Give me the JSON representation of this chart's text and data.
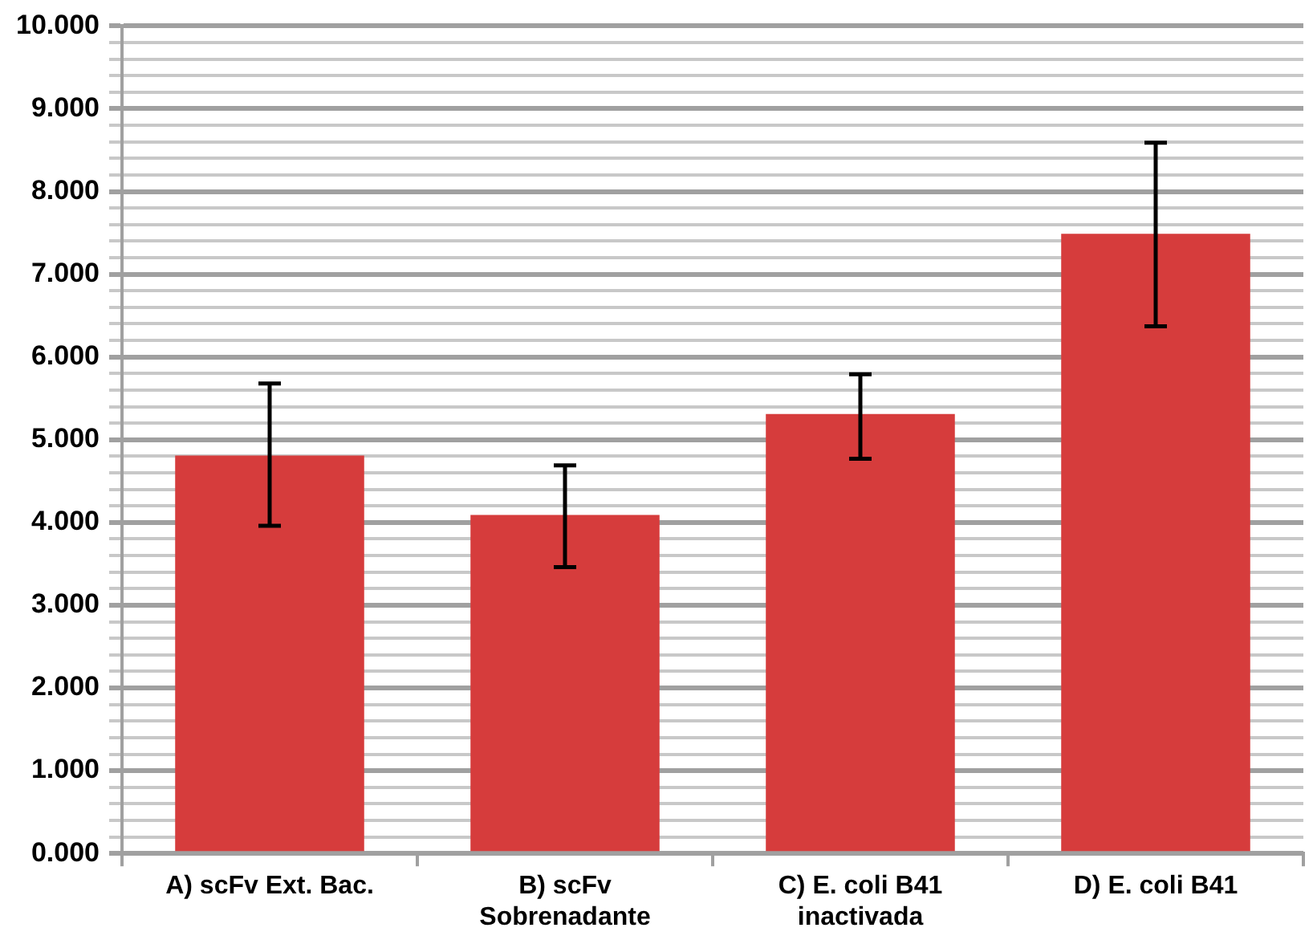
{
  "chart_data": {
    "type": "bar",
    "categories": [
      "A) scFv Ext. Bac.",
      "B) scFv Sobrenadante",
      "C) E. coli B41 inactivada",
      "D) E. coli B41"
    ],
    "values": [
      4.81,
      4.09,
      5.31,
      7.49
    ],
    "errors": [
      [
        3.96,
        5.68
      ],
      [
        3.46,
        4.69
      ],
      [
        4.77,
        5.79
      ],
      [
        6.37,
        8.59
      ]
    ],
    "color": "#d63c3c",
    "ylim": [
      0,
      10
    ],
    "yticks": [
      {
        "value": 0,
        "label": "0.000"
      },
      {
        "value": 0.2,
        "label": null
      },
      {
        "value": 0.4,
        "label": null
      },
      {
        "value": 0.6,
        "label": null
      },
      {
        "value": 0.8,
        "label": null
      },
      {
        "value": 1,
        "label": "1.000"
      },
      {
        "value": 1.2,
        "label": null
      },
      {
        "value": 1.4,
        "label": null
      },
      {
        "value": 1.6,
        "label": null
      },
      {
        "value": 1.8,
        "label": null
      },
      {
        "value": 2,
        "label": "2.000"
      },
      {
        "value": 2.2,
        "label": null
      },
      {
        "value": 2.4,
        "label": null
      },
      {
        "value": 2.6,
        "label": null
      },
      {
        "value": 2.8,
        "label": null
      },
      {
        "value": 3,
        "label": "3.000"
      },
      {
        "value": 3.2,
        "label": null
      },
      {
        "value": 3.4,
        "label": null
      },
      {
        "value": 3.6,
        "label": null
      },
      {
        "value": 3.8,
        "label": null
      },
      {
        "value": 4,
        "label": "4.000"
      },
      {
        "value": 4.2,
        "label": null
      },
      {
        "value": 4.4,
        "label": null
      },
      {
        "value": 4.6,
        "label": null
      },
      {
        "value": 4.8,
        "label": null
      },
      {
        "value": 5,
        "label": "5.000"
      },
      {
        "value": 5.2,
        "label": null
      },
      {
        "value": 5.4,
        "label": null
      },
      {
        "value": 5.6,
        "label": null
      },
      {
        "value": 5.8,
        "label": null
      },
      {
        "value": 6,
        "label": "6.000"
      },
      {
        "value": 6.2,
        "label": null
      },
      {
        "value": 6.4,
        "label": null
      },
      {
        "value": 6.6,
        "label": null
      },
      {
        "value": 6.8,
        "label": null
      },
      {
        "value": 7,
        "label": "7.000"
      },
      {
        "value": 7.2,
        "label": null
      },
      {
        "value": 7.4,
        "label": null
      },
      {
        "value": 7.6,
        "label": null
      },
      {
        "value": 7.8,
        "label": null
      },
      {
        "value": 8,
        "label": "8.000"
      },
      {
        "value": 8.2,
        "label": null
      },
      {
        "value": 8.4,
        "label": null
      },
      {
        "value": 8.6,
        "label": null
      },
      {
        "value": 8.8,
        "label": null
      },
      {
        "value": 9,
        "label": "9.000"
      },
      {
        "value": 9.2,
        "label": null
      },
      {
        "value": 9.4,
        "label": null
      },
      {
        "value": 9.6,
        "label": null
      },
      {
        "value": 9.8,
        "label": null
      },
      {
        "value": 10,
        "label": "10.000"
      }
    ],
    "grid": true,
    "legend": false
  }
}
